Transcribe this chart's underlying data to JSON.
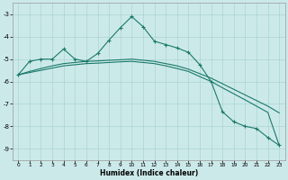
{
  "xlabel": "Humidex (Indice chaleur)",
  "xlim": [
    -0.5,
    23.5
  ],
  "ylim": [
    -9.5,
    -2.5
  ],
  "yticks": [
    -9,
    -8,
    -7,
    -6,
    -5,
    -4,
    -3
  ],
  "xticks": [
    0,
    1,
    2,
    3,
    4,
    5,
    6,
    7,
    8,
    9,
    10,
    11,
    12,
    13,
    14,
    15,
    16,
    17,
    18,
    19,
    20,
    21,
    22,
    23
  ],
  "bg_color": "#cce9e9",
  "grid_color": "#aad4d4",
  "line_color": "#1a7a6a",
  "curve1_x": [
    0,
    1,
    2,
    3,
    4,
    5,
    6,
    7,
    8,
    9,
    10,
    11,
    12,
    13,
    14,
    15,
    16,
    17,
    18,
    19,
    20,
    21,
    22,
    23
  ],
  "curve1_y": [
    -5.7,
    -5.1,
    -5.0,
    -5.0,
    -4.55,
    -5.0,
    -5.1,
    -4.75,
    -4.15,
    -3.6,
    -3.1,
    -3.55,
    -4.2,
    -4.35,
    -4.5,
    -4.7,
    -5.25,
    -6.0,
    -7.35,
    -7.8,
    -8.0,
    -8.1,
    -8.5,
    -8.85
  ],
  "curve2_x": [
    0,
    1,
    2,
    3,
    4,
    5,
    6,
    7,
    8,
    9,
    10,
    11,
    12,
    13,
    14,
    15,
    16,
    17,
    18,
    19,
    20,
    21,
    22,
    23
  ],
  "curve2_y": [
    -5.7,
    -5.55,
    -5.42,
    -5.3,
    -5.2,
    -5.15,
    -5.1,
    -5.08,
    -5.05,
    -5.03,
    -5.0,
    -5.05,
    -5.1,
    -5.2,
    -5.3,
    -5.45,
    -5.65,
    -5.85,
    -6.1,
    -6.35,
    -6.6,
    -6.85,
    -7.1,
    -7.4
  ],
  "curve3_x": [
    0,
    1,
    2,
    3,
    4,
    5,
    6,
    7,
    8,
    9,
    10,
    11,
    12,
    13,
    14,
    15,
    16,
    17,
    18,
    19,
    20,
    21,
    22,
    23
  ],
  "curve3_y": [
    -5.7,
    -5.6,
    -5.5,
    -5.4,
    -5.3,
    -5.25,
    -5.2,
    -5.18,
    -5.15,
    -5.12,
    -5.1,
    -5.15,
    -5.2,
    -5.3,
    -5.42,
    -5.55,
    -5.78,
    -6.0,
    -6.28,
    -6.55,
    -6.82,
    -7.1,
    -7.38,
    -8.85
  ]
}
